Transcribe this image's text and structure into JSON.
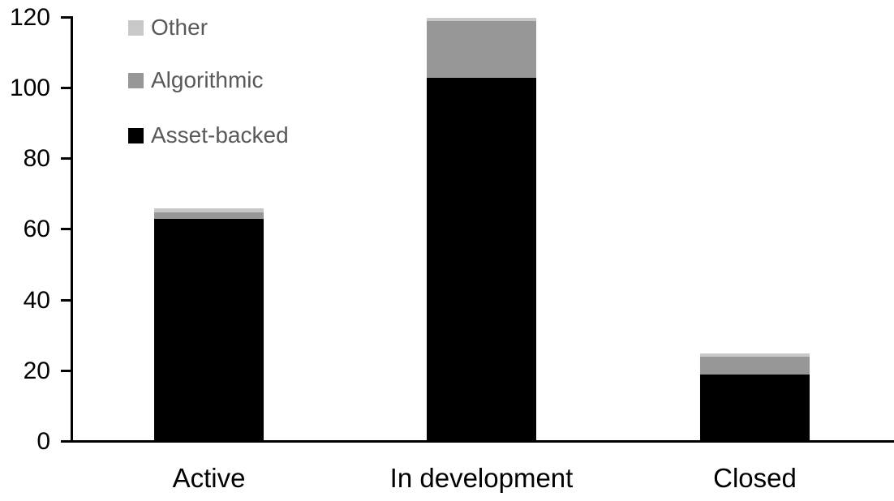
{
  "chart_data": {
    "type": "bar",
    "stacked": true,
    "title": "",
    "xlabel": "",
    "ylabel": "",
    "categories": [
      "Active",
      "In development",
      "Closed"
    ],
    "series": [
      {
        "name": "Asset-backed",
        "color": "#000000",
        "values": [
          63,
          103,
          19
        ]
      },
      {
        "name": "Algorithmic",
        "color": "#979797",
        "values": [
          2,
          16,
          5
        ]
      },
      {
        "name": "Other",
        "color": "#c8c8c8",
        "values": [
          1,
          1,
          1
        ]
      }
    ],
    "ylim": [
      0,
      120
    ],
    "yticks": [
      "0",
      "20",
      "40",
      "60",
      "80",
      "100",
      "120"
    ],
    "grid": false,
    "legend_position": "top-left",
    "legend_order": [
      "Other",
      "Algorithmic",
      "Asset-backed"
    ]
  },
  "colors": {
    "background": "#ffffff",
    "axis": "#000000",
    "tick_label_text": "#000000",
    "category_label_text": "#000000",
    "legend_text": "#595959"
  }
}
